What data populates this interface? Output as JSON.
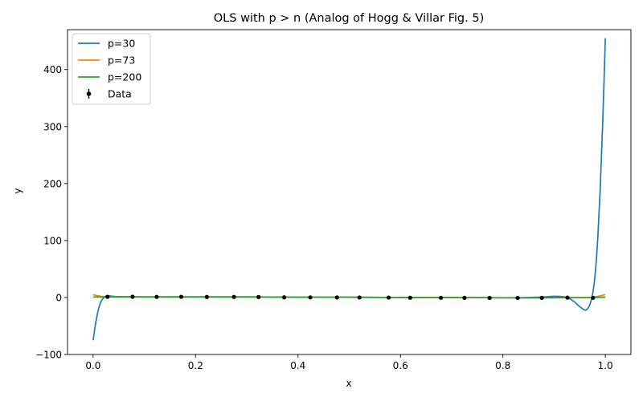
{
  "chart_data": {
    "type": "line",
    "title": "OLS with p > n (Analog of Hogg & Villar Fig. 5)",
    "xlabel": "x",
    "ylabel": "y",
    "xlim": [
      -0.05,
      1.05
    ],
    "ylim": [
      -100,
      470
    ],
    "xticks": [
      0.0,
      0.2,
      0.4,
      0.6,
      0.8,
      1.0
    ],
    "xtick_labels": [
      "0.0",
      "0.2",
      "0.4",
      "0.6",
      "0.8",
      "1.0"
    ],
    "yticks": [
      -100,
      0,
      100,
      200,
      300,
      400
    ],
    "ytick_labels": [
      "−100",
      "0",
      "100",
      "200",
      "300",
      "400"
    ],
    "grid": false,
    "legend_position": "top-left",
    "series": [
      {
        "name": "p=30",
        "color": "#1f77b4",
        "x": [
          0.0,
          0.005,
          0.01,
          0.015,
          0.02,
          0.025,
          0.03,
          0.04,
          0.05,
          0.1,
          0.2,
          0.3,
          0.4,
          0.5,
          0.6,
          0.7,
          0.8,
          0.85,
          0.88,
          0.9,
          0.92,
          0.93,
          0.94,
          0.95,
          0.96,
          0.965,
          0.97,
          0.975,
          0.98,
          0.985,
          0.99,
          0.995,
          1.0
        ],
        "y": [
          -75,
          -45,
          -22,
          -8,
          -1,
          2,
          3,
          2,
          1.5,
          1,
          1,
          1,
          0.5,
          0.5,
          0,
          0,
          -0.5,
          0,
          1,
          2,
          1,
          -2,
          -8,
          -16,
          -22,
          -20,
          -12,
          5,
          40,
          100,
          190,
          310,
          455
        ]
      },
      {
        "name": "p=73",
        "color": "#ff7f0e",
        "x": [
          0.0,
          0.01,
          0.02,
          0.03,
          0.1,
          0.2,
          0.3,
          0.4,
          0.5,
          0.6,
          0.7,
          0.8,
          0.9,
          0.97,
          0.98,
          0.99,
          1.0
        ],
        "y": [
          5,
          3,
          1.5,
          1,
          1,
          1,
          1,
          0.5,
          0.5,
          0,
          0,
          -0.5,
          -0.5,
          0,
          1,
          3,
          5
        ]
      },
      {
        "name": "p=200",
        "color": "#2ca02c",
        "x": [
          0.0,
          0.03,
          0.1,
          0.2,
          0.3,
          0.4,
          0.5,
          0.6,
          0.7,
          0.8,
          0.9,
          0.97,
          1.0
        ],
        "y": [
          1,
          1,
          1,
          1,
          1,
          0.5,
          0.5,
          0,
          0,
          -0.5,
          -0.5,
          0,
          0.5
        ]
      }
    ],
    "points": {
      "name": "Data",
      "color": "#000000",
      "x": [
        0.028,
        0.077,
        0.124,
        0.172,
        0.222,
        0.275,
        0.323,
        0.373,
        0.424,
        0.476,
        0.52,
        0.577,
        0.619,
        0.679,
        0.725,
        0.774,
        0.829,
        0.876,
        0.926,
        0.976
      ],
      "y": [
        1.2,
        1.3,
        1.1,
        1.2,
        1.0,
        1.0,
        0.8,
        0.3,
        0.2,
        0.1,
        0.0,
        -0.2,
        -0.4,
        -0.5,
        -0.6,
        -0.8,
        -0.7,
        -0.6,
        -0.3,
        -0.5
      ]
    }
  }
}
